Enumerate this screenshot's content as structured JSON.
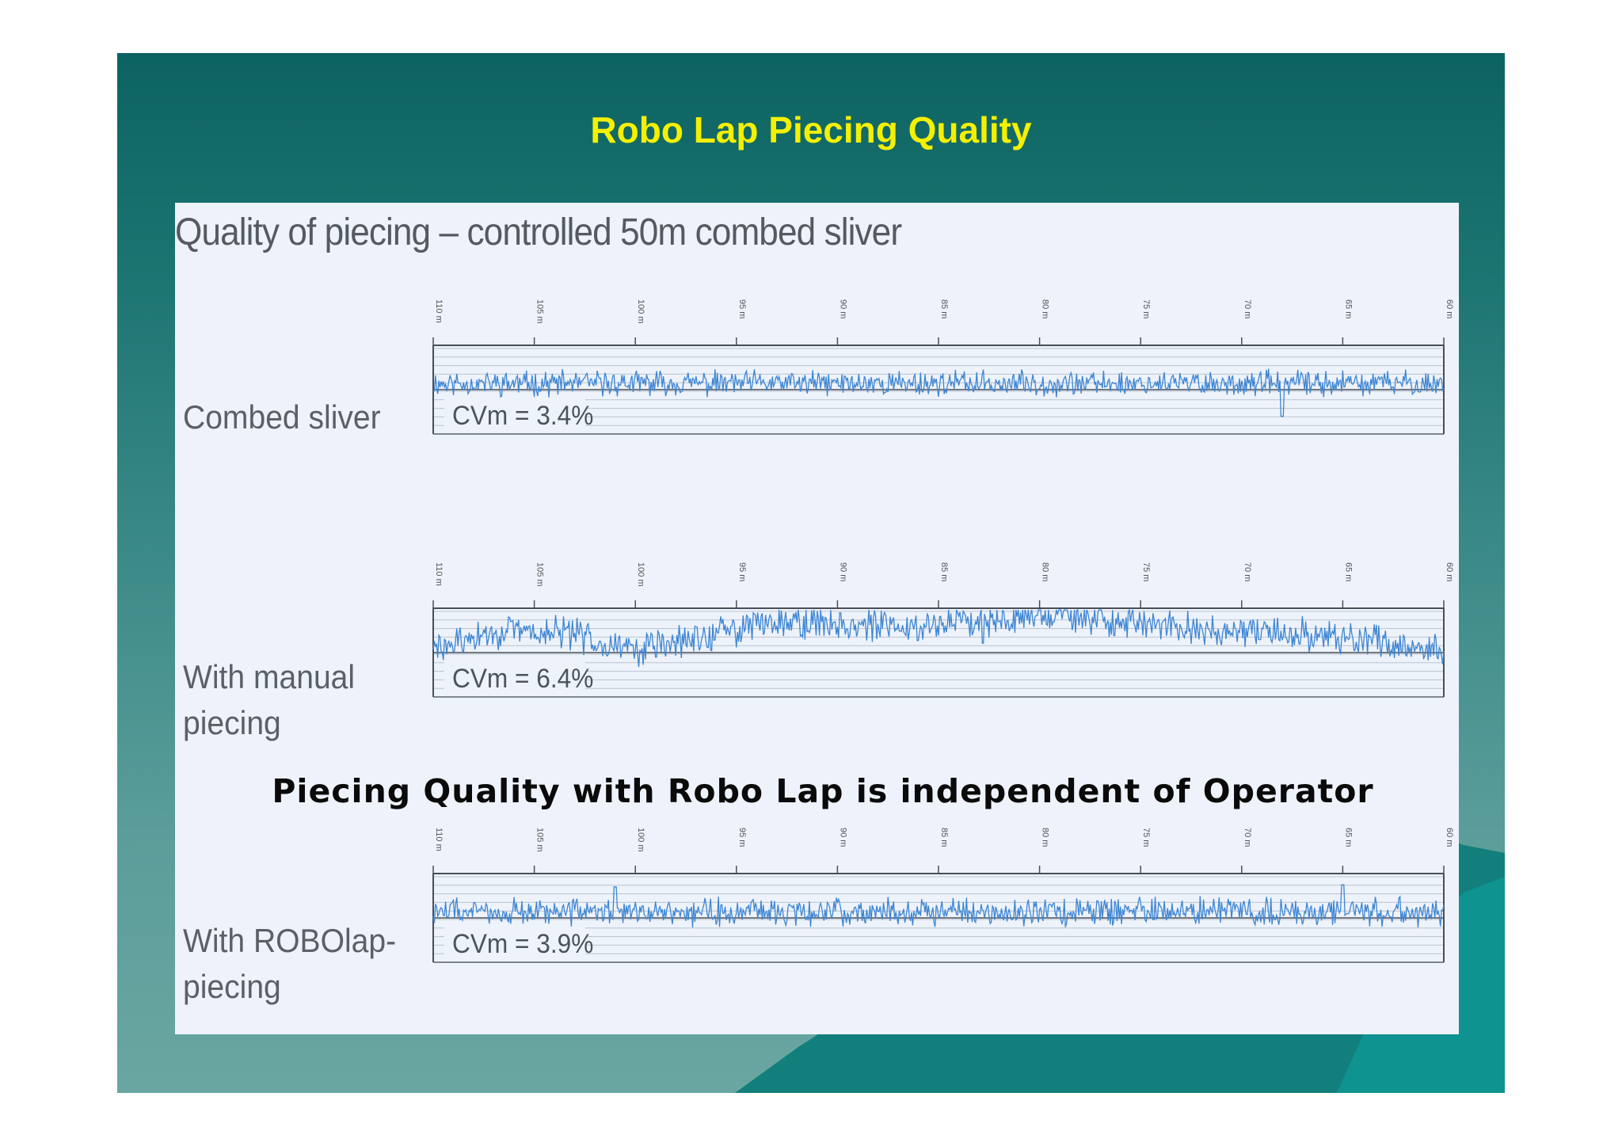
{
  "slide": {
    "title": "Robo Lap Piecing Quality",
    "caption": "Piecing Quality with Robo Lap is independent of Operator",
    "title_color": "#f4f000",
    "background_color": "#1d7572"
  },
  "figure": {
    "title": "Quality of piecing – controlled 50m combed sliver",
    "panel_color": "#eef3fb",
    "trace_color": "#3d85d3"
  },
  "chart_data": [
    {
      "type": "line",
      "label_lines": [
        "Combed sliver"
      ],
      "annotation": "CVm = 3.4%",
      "x_ticks": [
        "110 m",
        "105 m",
        "100 m",
        "95 m",
        "90 m",
        "85 m",
        "80 m",
        "75 m",
        "70 m",
        "65 m",
        "60 m"
      ],
      "xlim": [
        110,
        60
      ],
      "pattern": [
        0,
        0,
        0,
        0,
        0,
        0,
        0,
        0,
        0,
        0
      ],
      "noise_amp": 0.9,
      "seed": 11,
      "spikes": [
        {
          "x": 68,
          "v": -3.2
        }
      ]
    },
    {
      "type": "line",
      "label_lines": [
        "With  manual",
        "piecing"
      ],
      "annotation": "CVm = 6.4%",
      "x_ticks": [
        "110 m",
        "105 m",
        "100 m",
        "95 m",
        "90 m",
        "85 m",
        "80 m",
        "75 m",
        "70 m",
        "65 m",
        "60 m"
      ],
      "xlim": [
        110,
        60
      ],
      "pattern": [
        -0.3,
        1.4,
        1.3,
        -0.3,
        0.8,
        2.6,
        2.2,
        1.8,
        2.6,
        3.2,
        2.4,
        1.8,
        1.3,
        1.2,
        0.5,
        -0.6
      ],
      "noise_amp": 1.2,
      "seed": 29,
      "spikes": [
        {
          "x": 82.8,
          "v": -2.4
        },
        {
          "x": 79,
          "v": 4.2
        },
        {
          "x": 77,
          "v": 4.4
        }
      ]
    },
    {
      "type": "line",
      "label_lines": [
        "With  ROBOlap-",
        "piecing"
      ],
      "annotation": "CVm = 3.9%",
      "x_ticks": [
        "110 m",
        "105 m",
        "100 m",
        "95 m",
        "90 m",
        "85 m",
        "80 m",
        "75 m",
        "70 m",
        "65 m",
        "60 m"
      ],
      "xlim": [
        110,
        60
      ],
      "pattern": [
        0,
        0,
        0,
        0,
        0,
        0,
        0,
        0,
        0,
        0
      ],
      "noise_amp": 1.0,
      "seed": 47,
      "spikes": [
        {
          "x": 101,
          "v": 2.4
        },
        {
          "x": 65,
          "v": 2.6
        }
      ]
    }
  ]
}
